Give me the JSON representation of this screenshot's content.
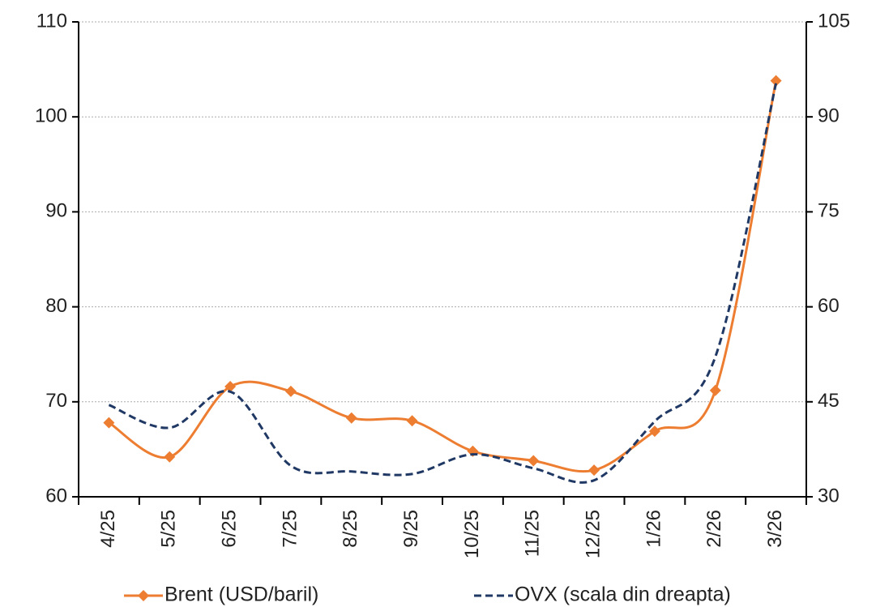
{
  "chart_data": {
    "type": "line",
    "categories": [
      "4/25",
      "5/25",
      "6/25",
      "7/25",
      "8/25",
      "9/25",
      "10/25",
      "11/25",
      "12/25",
      "1/26",
      "2/26",
      "3/26"
    ],
    "series": [
      {
        "name": "Brent (USD/baril)",
        "color": "#ed7d31",
        "marker": "diamond",
        "values": [
          67.8,
          64.2,
          71.6,
          71.1,
          68.3,
          68.0,
          64.8,
          63.8,
          62.8,
          66.9,
          71.2,
          103.8
        ]
      },
      {
        "name": "OVX (scala din dreapta)",
        "color": "#203864",
        "dash": true,
        "axis": "y2",
        "values": [
          44.5,
          40.9,
          46.6,
          34.9,
          34.0,
          33.6,
          36.7,
          34.5,
          32.6,
          41.9,
          52.1,
          95.3
        ]
      }
    ],
    "ylim": [
      60,
      110
    ],
    "yticks": [
      60,
      70,
      80,
      90,
      100,
      110
    ],
    "y2lim": [
      30,
      105
    ],
    "y2ticks": [
      30,
      45,
      60,
      75,
      90,
      105
    ],
    "grid": true,
    "legend": "bottom"
  }
}
